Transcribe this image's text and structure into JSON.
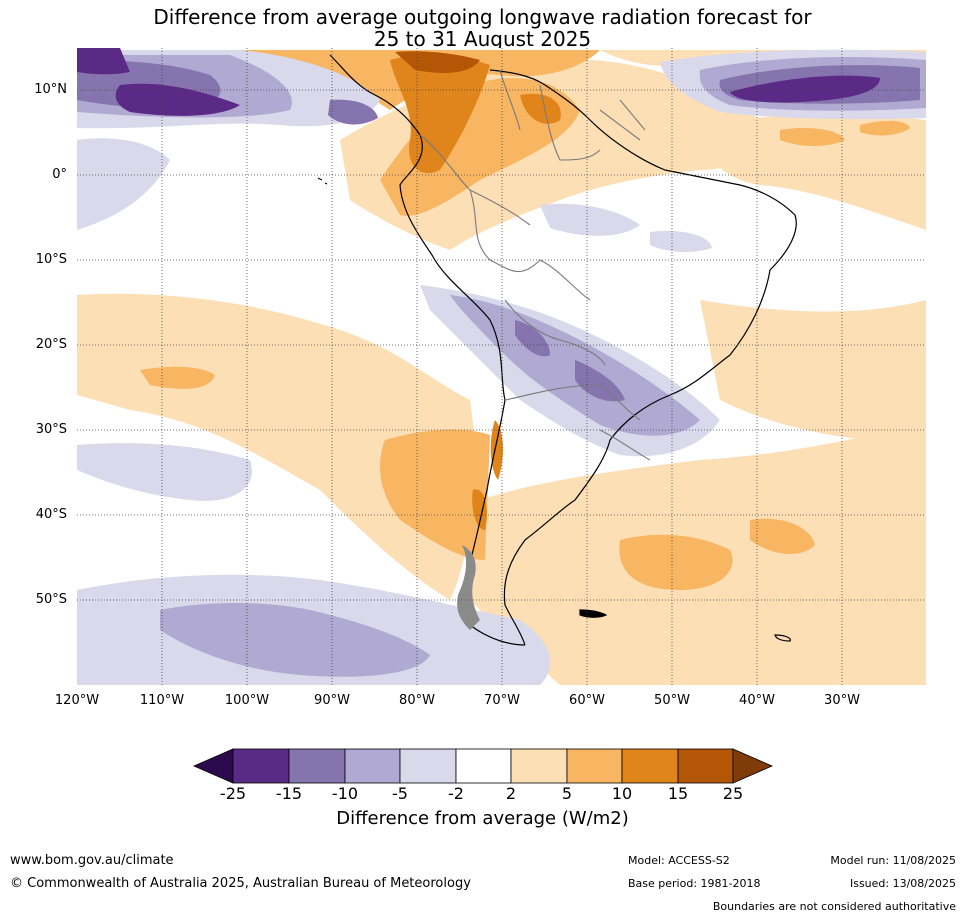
{
  "title_line1": "Difference from average outgoing longwave radiation forecast for",
  "title_line2": "25 to 31 August 2025",
  "map": {
    "lat_labels": [
      "10°N",
      "0°",
      "10°S",
      "20°S",
      "30°S",
      "40°S",
      "50°S"
    ],
    "lon_labels": [
      "120°W",
      "110°W",
      "100°W",
      "90°W",
      "80°W",
      "70°W",
      "60°W",
      "50°W",
      "40°W",
      "30°W"
    ],
    "extent": {
      "lon_min": -120,
      "lon_max": -20,
      "lat_min": -60,
      "lat_max": 15
    }
  },
  "colorbar": {
    "title": "Difference from average (W/m2)",
    "ticks": [
      "-25",
      "-15",
      "-10",
      "-5",
      "-2",
      "2",
      "5",
      "10",
      "15",
      "25"
    ],
    "colors": [
      "#2d0a4e",
      "#5b2a86",
      "#8574ad",
      "#b0a9d1",
      "#d9d9eb",
      "#ffffff",
      "#fddfb5",
      "#f8b562",
      "#e0851b",
      "#b35707",
      "#7f3b08"
    ]
  },
  "footer": {
    "url": "www.bom.gov.au/climate",
    "copyright": "© Commonwealth of Australia 2025, Australian Bureau of Meteorology",
    "model": "Model: ACCESS-S2",
    "base_period": "Base period: 1981-2018",
    "model_run": "Model run: 11/08/2025",
    "issued": "Issued: 13/08/2025",
    "boundaries": "Boundaries are not considered authoritative"
  }
}
